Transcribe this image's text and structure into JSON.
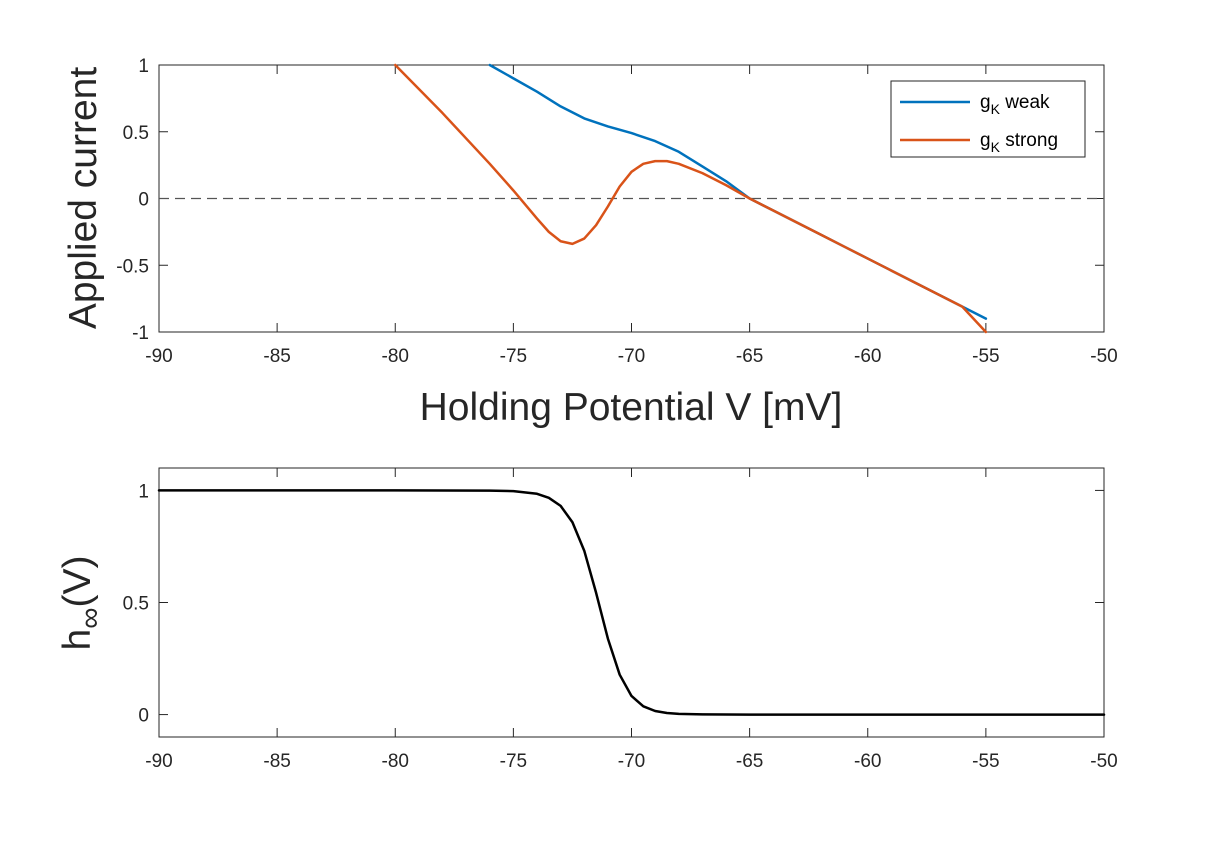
{
  "chart_data": [
    {
      "type": "line",
      "xlabel": "Holding Potential V [mV]",
      "ylabel": "Applied current",
      "xlim": [
        -90,
        -50
      ],
      "ylim": [
        -1,
        1
      ],
      "xticks": [
        -90,
        -85,
        -80,
        -75,
        -70,
        -65,
        -60,
        -55,
        -50
      ],
      "yticks": [
        -1,
        -0.5,
        0,
        0.5,
        1
      ],
      "xtick_labels": [
        "-90",
        "-85",
        "-80",
        "-75",
        "-70",
        "-65",
        "-60",
        "-55",
        "-50"
      ],
      "ytick_labels": [
        "-1",
        "-0.5",
        "0",
        "0.5",
        "1"
      ],
      "grid": false,
      "legend": {
        "placement": "top-right"
      },
      "reference_line": {
        "y": 0,
        "style": "dashed",
        "color": "#555555"
      },
      "series": [
        {
          "name": "g_K weak",
          "label_main": "g",
          "label_sub": "K",
          "label_rest": " weak",
          "color": "#0072BD",
          "x": [
            -76,
            -75,
            -74,
            -73,
            -72,
            -71,
            -70,
            -69,
            -68,
            -67,
            -66,
            -65,
            -64,
            -63,
            -62,
            -61,
            -60,
            -59,
            -58,
            -57,
            -56,
            -55
          ],
          "y": [
            1.0,
            0.9,
            0.8,
            0.69,
            0.6,
            0.54,
            0.49,
            0.43,
            0.35,
            0.24,
            0.13,
            0.0,
            -0.09,
            -0.18,
            -0.27,
            -0.36,
            -0.45,
            -0.54,
            -0.63,
            -0.72,
            -0.81,
            -0.9
          ]
        },
        {
          "name": "g_K strong",
          "label_main": "g",
          "label_sub": "K",
          "label_rest": " strong",
          "color": "#D95319",
          "x": [
            -80,
            -79,
            -78,
            -77,
            -76,
            -75,
            -74,
            -73.5,
            -73,
            -72.5,
            -72,
            -71.5,
            -71,
            -70.5,
            -70,
            -69.5,
            -69,
            -68.5,
            -68,
            -67,
            -66,
            -65,
            -64,
            -63,
            -62,
            -61,
            -60,
            -59,
            -58,
            -57,
            -56,
            -55
          ],
          "y": [
            1.0,
            0.82,
            0.64,
            0.45,
            0.26,
            0.06,
            -0.15,
            -0.25,
            -0.32,
            -0.34,
            -0.3,
            -0.2,
            -0.06,
            0.09,
            0.2,
            0.26,
            0.28,
            0.28,
            0.26,
            0.19,
            0.1,
            0.0,
            -0.09,
            -0.18,
            -0.27,
            -0.36,
            -0.45,
            -0.54,
            -0.63,
            -0.72,
            -0.81,
            -1.0
          ]
        }
      ]
    },
    {
      "type": "line",
      "xlabel": "",
      "ylabel": "h∞(V)",
      "ylabel_main": "h",
      "ylabel_sub": "∞",
      "ylabel_rest": "(V)",
      "xlim": [
        -90,
        -50
      ],
      "ylim": [
        -0.1,
        1.1
      ],
      "xticks": [
        -90,
        -85,
        -80,
        -75,
        -70,
        -65,
        -60,
        -55,
        -50
      ],
      "yticks": [
        0,
        0.5,
        1
      ],
      "xtick_labels": [
        "-90",
        "-85",
        "-80",
        "-75",
        "-70",
        "-65",
        "-60",
        "-55",
        "-50"
      ],
      "ytick_labels": [
        "0",
        "0.5",
        "1"
      ],
      "grid": false,
      "series": [
        {
          "color": "#000000",
          "x": [
            -90,
            -85,
            -80,
            -76,
            -75,
            -74,
            -73.5,
            -73,
            -72.5,
            -72,
            -71.5,
            -71,
            -70.5,
            -70,
            -69.5,
            -69,
            -68.5,
            -68,
            -67,
            -66,
            -65,
            -60,
            -55,
            -50
          ],
          "y": [
            1.0,
            1.0,
            1.0,
            0.999,
            0.997,
            0.985,
            0.967,
            0.931,
            0.858,
            0.731,
            0.544,
            0.339,
            0.178,
            0.083,
            0.037,
            0.016,
            0.007,
            0.003,
            0.0007,
            0.0001,
            0.0,
            0.0,
            0.0,
            0.0
          ]
        }
      ]
    }
  ]
}
